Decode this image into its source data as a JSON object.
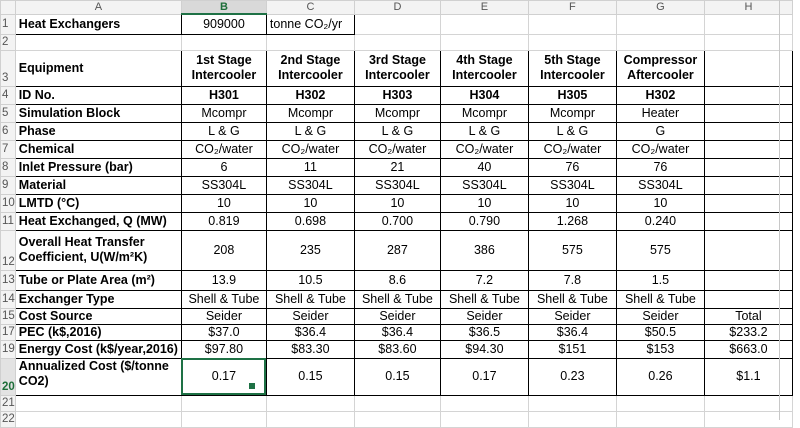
{
  "columns": [
    "A",
    "B",
    "C",
    "D",
    "E",
    "F",
    "G",
    "H"
  ],
  "rows": {
    "r1": {
      "num": "1",
      "label": "Heat Exchangers",
      "b": "909000",
      "c": "tonne CO₂/yr"
    },
    "r2": {
      "num": "2"
    },
    "r3": {
      "num": "3",
      "label": "Equipment",
      "h1a": "1st Stage",
      "h1b": "Intercooler",
      "h2a": "2nd Stage",
      "h2b": "Intercooler",
      "h3a": "3rd Stage",
      "h3b": "Intercooler",
      "h4a": "4th Stage",
      "h4b": "Intercooler",
      "h5a": "5th Stage",
      "h5b": "Intercooler",
      "h6a": "Compressor",
      "h6b": "Aftercooler"
    },
    "r4": {
      "num": "4",
      "label": "ID No.",
      "vals": [
        "H301",
        "H302",
        "H303",
        "H304",
        "H305",
        "H302"
      ]
    },
    "r5": {
      "num": "5",
      "label": "Simulation Block",
      "vals": [
        "Mcompr",
        "Mcompr",
        "Mcompr",
        "Mcompr",
        "Mcompr",
        "Heater"
      ]
    },
    "r6": {
      "num": "6",
      "label": "Phase",
      "vals": [
        "L & G",
        "L & G",
        "L & G",
        "L & G",
        "L & G",
        "G"
      ]
    },
    "r7": {
      "num": "7",
      "label": "Chemical",
      "vals": [
        "CO₂/water",
        "CO₂/water",
        "CO₂/water",
        "CO₂/water",
        "CO₂/water",
        "CO₂/water"
      ]
    },
    "r8": {
      "num": "8",
      "label": "Inlet Pressure (bar)",
      "vals": [
        "6",
        "11",
        "21",
        "40",
        "76",
        "76"
      ]
    },
    "r9": {
      "num": "9",
      "label": "Material",
      "vals": [
        "SS304L",
        "SS304L",
        "SS304L",
        "SS304L",
        "SS304L",
        "SS304L"
      ]
    },
    "r10": {
      "num": "10",
      "label": "LMTD (°C)",
      "vals": [
        "10",
        "10",
        "10",
        "10",
        "10",
        "10"
      ]
    },
    "r11": {
      "num": "11",
      "label": "Heat Exchanged, Q (MW)",
      "vals": [
        "0.819",
        "0.698",
        "0.700",
        "0.790",
        "1.268",
        "0.240"
      ]
    },
    "r12": {
      "num": "12",
      "label_a": "Overall Heat Transfer",
      "label_b": "Coefficient, U(W/m²K)",
      "vals": [
        "208",
        "235",
        "287",
        "386",
        "575",
        "575"
      ]
    },
    "r13": {
      "num": "13",
      "label": "Tube or Plate Area (m²)",
      "vals": [
        "13.9",
        "10.5",
        "8.6",
        "7.2",
        "7.8",
        "1.5"
      ]
    },
    "r14": {
      "num": "14",
      "label": "Exchanger Type",
      "vals": [
        "Shell & Tube",
        "Shell & Tube",
        "Shell & Tube",
        "Shell & Tube",
        "Shell & Tube",
        "Shell & Tube"
      ]
    },
    "r15": {
      "num": "15",
      "label": "Cost Source",
      "vals": [
        "Seider",
        "Seider",
        "Seider",
        "Seider",
        "Seider",
        "Seider"
      ],
      "h": "Total"
    },
    "r17": {
      "num": "17",
      "label": "PEC (k$,2016)",
      "vals": [
        "$37.0",
        "$36.4",
        "$36.4",
        "$36.5",
        "$36.4",
        "$50.5"
      ],
      "h": "$233.2"
    },
    "r19": {
      "num": "19",
      "label": "Energy Cost (k$/year,2016)",
      "vals": [
        "$97.80",
        "$83.30",
        "$83.60",
        "$94.30",
        "$151",
        "$153"
      ],
      "h": "$663.0"
    },
    "r20": {
      "num": "20",
      "label_a": "Annualized Cost ($/tonne",
      "label_b": "CO2)",
      "vals": [
        "0.17",
        "0.15",
        "0.15",
        "0.17",
        "0.23",
        "0.26"
      ],
      "h": "$1.1"
    },
    "r21": {
      "num": "21"
    },
    "r22": {
      "num": "22"
    }
  },
  "selection": {
    "active_cell": "B20",
    "active_column": "B",
    "active_row": "20"
  }
}
